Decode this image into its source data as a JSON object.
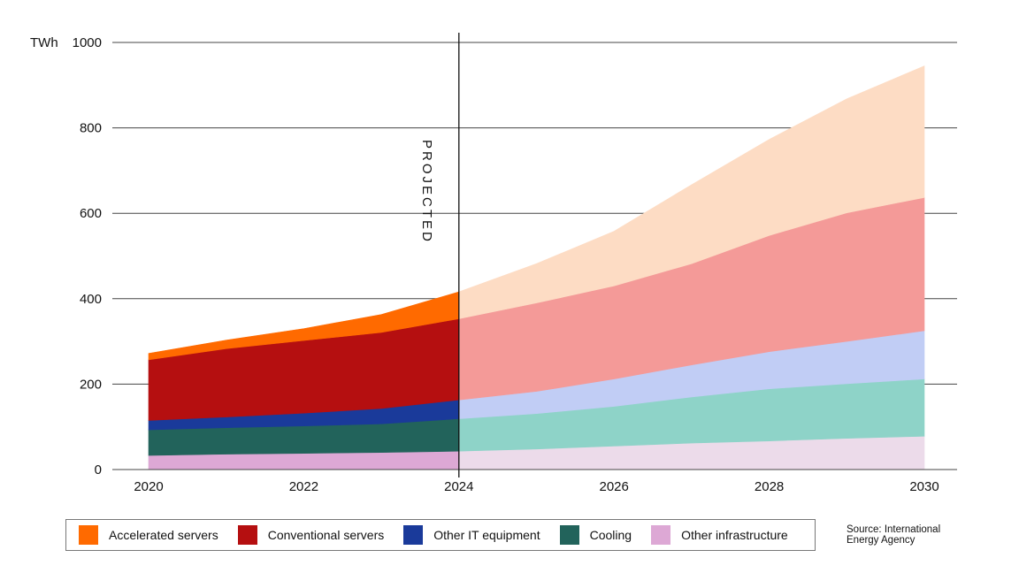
{
  "chart_data": {
    "type": "area",
    "stacked": true,
    "unit_label": "TWh",
    "x": [
      2020,
      2021,
      2022,
      2023,
      2024,
      2025,
      2026,
      2027,
      2028,
      2029,
      2030
    ],
    "projected_from": 2024,
    "projected_label": "PROJECTED",
    "xticks": [
      2020,
      2022,
      2024,
      2026,
      2028,
      2030
    ],
    "yticks": [
      0,
      200,
      400,
      600,
      800,
      1000
    ],
    "ylim": [
      0,
      1000
    ],
    "grid": true,
    "series": [
      {
        "name": "Other infrastructure",
        "color": "#dda8d5",
        "projected_color": "#ecdbea",
        "values": [
          33,
          36,
          38,
          40,
          43,
          48,
          55,
          62,
          67,
          73,
          78
        ]
      },
      {
        "name": "Cooling",
        "color": "#22635b",
        "projected_color": "#8ed3c8",
        "values": [
          60,
          62,
          64,
          67,
          76,
          83,
          93,
          108,
          122,
          128,
          134
        ]
      },
      {
        "name": "Other IT equipment",
        "color": "#1a3a9a",
        "projected_color": "#c1cdf5",
        "values": [
          22,
          25,
          30,
          36,
          44,
          52,
          64,
          75,
          87,
          99,
          113
        ]
      },
      {
        "name": "Conventional servers",
        "color": "#b50f10",
        "projected_color": "#f49a98",
        "values": [
          142,
          160,
          170,
          178,
          190,
          207,
          218,
          237,
          272,
          301,
          312
        ]
      },
      {
        "name": "Accelerated servers",
        "color": "#ff6a00",
        "projected_color": "#fddcc4",
        "values": [
          15,
          20,
          28,
          42,
          63,
          92,
          128,
          185,
          225,
          267,
          308
        ]
      }
    ],
    "legend": {
      "placement": "bottom",
      "items": [
        "Accelerated servers",
        "Conventional servers",
        "Other IT equipment",
        "Cooling",
        "Other infrastructure"
      ]
    }
  },
  "source": {
    "line1": "Source: International",
    "line2": "Energy Agency"
  }
}
